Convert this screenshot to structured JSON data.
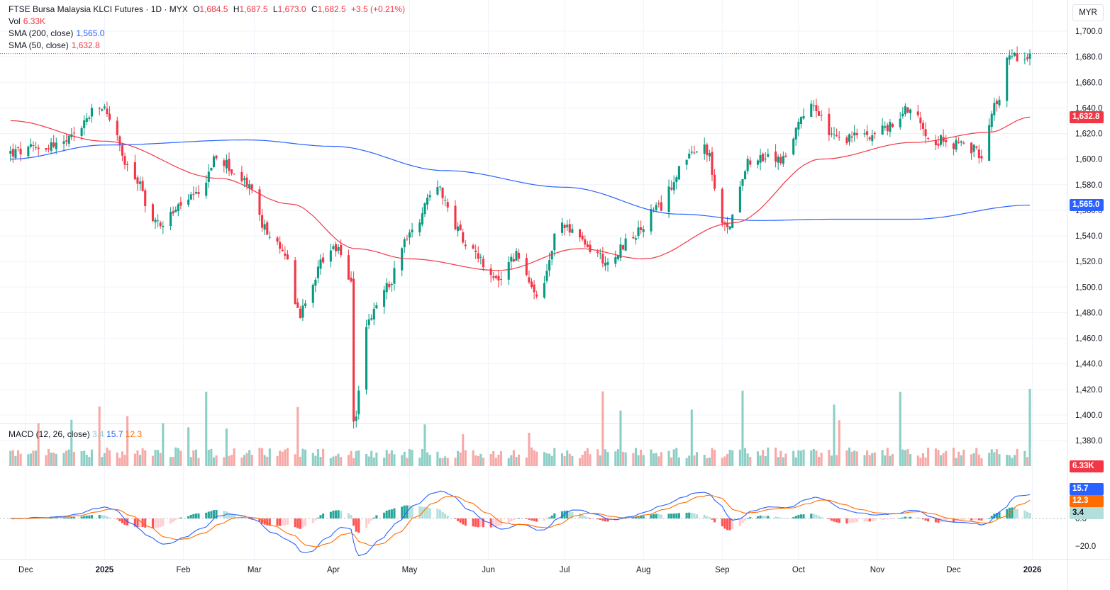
{
  "header": {
    "symbol_line": "FTSE Bursa Malaysia KLCI Futures · 1D · MYX",
    "open_label": "O",
    "open": "1,684.5",
    "high_label": "H",
    "high": "1,687.5",
    "low_label": "L",
    "low": "1,673.0",
    "close_label": "C",
    "close": "1,682.5",
    "change": "+3.5 (+0.21%)"
  },
  "indicators": {
    "vol_label": "Vol",
    "vol_value": "6.33K",
    "sma200_label": "SMA (200, close)",
    "sma200_value": "1,565.0",
    "sma50_label": "SMA (50, close)",
    "sma50_value": "1,632.8",
    "macd_label": "MACD (12, 26, close)",
    "macd_hist": "3.4",
    "macd_line": "15.7",
    "macd_signal": "12.3"
  },
  "axis": {
    "currency": "MYR",
    "price_ticks": [
      "1,700.0",
      "1,680.0",
      "1,660.0",
      "1,640.0",
      "1,620.0",
      "1,600.0",
      "1,580.0",
      "1,560.0",
      "1,540.0",
      "1,520.0",
      "1,500.0",
      "1,480.0",
      "1,460.0",
      "1,440.0",
      "1,420.0",
      "1,400.0",
      "1,380.0"
    ],
    "macd_ticks": [
      "0.0",
      "−20.0"
    ],
    "months": [
      "Dec",
      "2025",
      "Feb",
      "Mar",
      "Apr",
      "May",
      "Jun",
      "Jul",
      "Aug",
      "Sep",
      "Oct",
      "Nov",
      "Dec",
      "2026"
    ]
  },
  "badges": {
    "sma50": "1,632.8",
    "sma200": "1,565.0",
    "volume": "6.33K",
    "macd_line": "15.7",
    "macd_signal": "12.3",
    "macd_hist": "3.4"
  },
  "colors": {
    "up": "#089981",
    "down": "#f23645",
    "up_vol": "#8ccfc6",
    "down_vol": "#f7a9a7",
    "sma200": "#2962ff",
    "sma50": "#f23645",
    "macd": "#2962ff",
    "signal": "#ff6d00"
  },
  "chart_data": {
    "type": "candlestick",
    "title": "FTSE Bursa Malaysia KLCI Futures · 1D · MYX",
    "price_range": [
      1380,
      1700
    ],
    "last_price": 1682.5,
    "close_keypoints": [
      [
        "2024-11-25",
        1605
      ],
      [
        "2024-12-15",
        1612
      ],
      [
        "2024-12-31",
        1640
      ],
      [
        "2025-01-13",
        1585
      ],
      [
        "2025-01-21",
        1550
      ],
      [
        "2025-02-06",
        1570
      ],
      [
        "2025-02-14",
        1600
      ],
      [
        "2025-02-27",
        1580
      ],
      [
        "2025-03-05",
        1545
      ],
      [
        "2025-03-13",
        1525
      ],
      [
        "2025-03-19",
        1480
      ],
      [
        "2025-03-28",
        1520
      ],
      [
        "2025-04-03",
        1530
      ],
      [
        "2025-04-08",
        1500
      ],
      [
        "2025-04-09",
        1395
      ],
      [
        "2025-04-14",
        1470
      ],
      [
        "2025-04-22",
        1500
      ],
      [
        "2025-04-30",
        1540
      ],
      [
        "2025-05-12",
        1580
      ],
      [
        "2025-05-19",
        1545
      ],
      [
        "2025-05-26",
        1530
      ],
      [
        "2025-06-03",
        1505
      ],
      [
        "2025-06-13",
        1525
      ],
      [
        "2025-06-20",
        1490
      ],
      [
        "2025-06-30",
        1550
      ],
      [
        "2025-07-11",
        1530
      ],
      [
        "2025-07-18",
        1520
      ],
      [
        "2025-07-28",
        1540
      ],
      [
        "2025-08-06",
        1560
      ],
      [
        "2025-08-18",
        1600
      ],
      [
        "2025-08-25",
        1610
      ],
      [
        "2025-09-02",
        1545
      ],
      [
        "2025-09-12",
        1600
      ],
      [
        "2025-09-24",
        1600
      ],
      [
        "2025-10-06",
        1640
      ],
      [
        "2025-10-16",
        1615
      ],
      [
        "2025-10-29",
        1620
      ],
      [
        "2025-11-06",
        1625
      ],
      [
        "2025-11-13",
        1640
      ],
      [
        "2025-11-24",
        1615
      ],
      [
        "2025-12-05",
        1610
      ],
      [
        "2025-12-12",
        1605
      ],
      [
        "2025-12-17",
        1640
      ],
      [
        "2025-12-23",
        1680
      ],
      [
        "2025-12-31",
        1682.5
      ]
    ],
    "sma200_keypoints": [
      [
        "2024-11-25",
        1600
      ],
      [
        "2025-01-01",
        1611
      ],
      [
        "2025-02-26",
        1615
      ],
      [
        "2025-04-01",
        1610
      ],
      [
        "2025-05-15",
        1591
      ],
      [
        "2025-07-01",
        1578
      ],
      [
        "2025-08-15",
        1557
      ],
      [
        "2025-09-15",
        1552
      ],
      [
        "2025-10-15",
        1553
      ],
      [
        "2025-11-15",
        1553
      ],
      [
        "2025-12-31",
        1564
      ]
    ],
    "sma50_keypoints": [
      [
        "2024-11-25",
        1630
      ],
      [
        "2025-01-01",
        1614
      ],
      [
        "2025-02-15",
        1585
      ],
      [
        "2025-03-15",
        1565
      ],
      [
        "2025-04-10",
        1530
      ],
      [
        "2025-05-01",
        1522
      ],
      [
        "2025-06-05",
        1513
      ],
      [
        "2025-07-07",
        1530
      ],
      [
        "2025-08-01",
        1522
      ],
      [
        "2025-09-05",
        1550
      ],
      [
        "2025-10-10",
        1600
      ],
      [
        "2025-11-15",
        1613
      ],
      [
        "2025-12-15",
        1621
      ],
      [
        "2025-12-31",
        1632.8
      ]
    ],
    "volume_range": [
      0,
      100
    ],
    "macd_range": [
      -25,
      15
    ],
    "months": [
      "Dec",
      "2025",
      "Feb",
      "Mar",
      "Apr",
      "May",
      "Jun",
      "Jul",
      "Aug",
      "Sep",
      "Oct",
      "Nov",
      "Dec",
      "2026"
    ],
    "grid": true
  }
}
